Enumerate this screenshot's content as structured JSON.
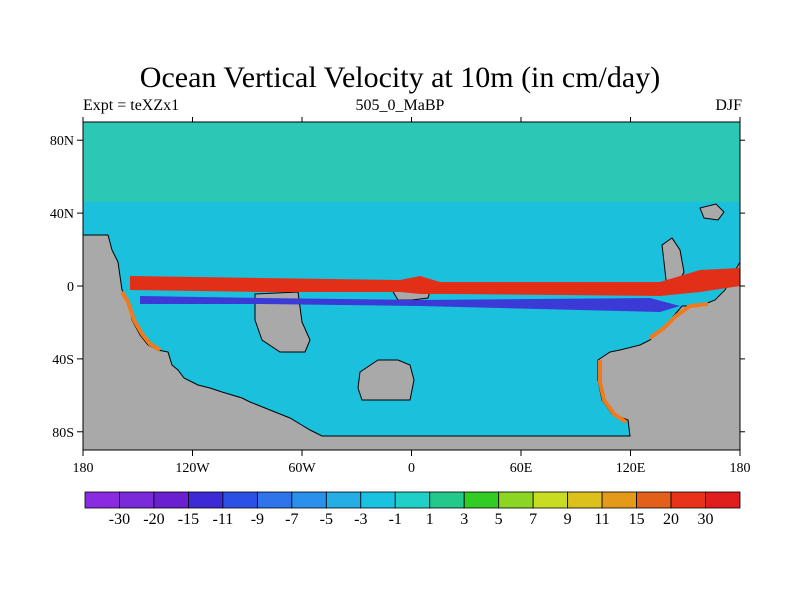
{
  "chart_data": {
    "type": "heatmap",
    "title": "Ocean Vertical Velocity at 10m (in cm/day)",
    "left_string": "Expt = teXZx1",
    "center_string": "505_0_MaBP",
    "right_string": "DJF",
    "units": "cm/day",
    "xlim": [
      -180,
      180
    ],
    "ylim": [
      -90,
      90
    ],
    "x_ticks": [
      {
        "value": -180,
        "label": "180"
      },
      {
        "value": -120,
        "label": "120W"
      },
      {
        "value": -60,
        "label": "60W"
      },
      {
        "value": 0,
        "label": "0"
      },
      {
        "value": 60,
        "label": "60E"
      },
      {
        "value": 120,
        "label": "120E"
      },
      {
        "value": 180,
        "label": "180"
      }
    ],
    "y_ticks": [
      {
        "value": 80,
        "label": "80N"
      },
      {
        "value": 40,
        "label": "40N"
      },
      {
        "value": 0,
        "label": "0"
      },
      {
        "value": -40,
        "label": "40S"
      },
      {
        "value": -80,
        "label": "80S"
      }
    ],
    "colorbar": {
      "labels": [
        "-30",
        "-20",
        "-15",
        "-11",
        "-9",
        "-7",
        "-5",
        "-3",
        "-1",
        "1",
        "3",
        "5",
        "7",
        "9",
        "11",
        "15",
        "20",
        "30"
      ],
      "colors": [
        "#8a2be2",
        "#7a2ad8",
        "#6a1fd0",
        "#3c2ad6",
        "#2b50e6",
        "#2f74ea",
        "#2b90ec",
        "#25aee6",
        "#18c2e0",
        "#1ed0c8",
        "#22c98a",
        "#33cc22",
        "#8ad622",
        "#c8dc22",
        "#dcc11c",
        "#e49a18",
        "#e2601a",
        "#e8321a",
        "#e01e1e"
      ]
    },
    "fields": {
      "ocean_background": "#1bc0dc",
      "northern_ocean": "#2cc8b6",
      "land": "#a9a9a9",
      "equatorial_upwelling": "#e23018",
      "equatorial_downwelling": "#3b3ad6",
      "coastal_upwelling": "#f07a1c"
    }
  }
}
